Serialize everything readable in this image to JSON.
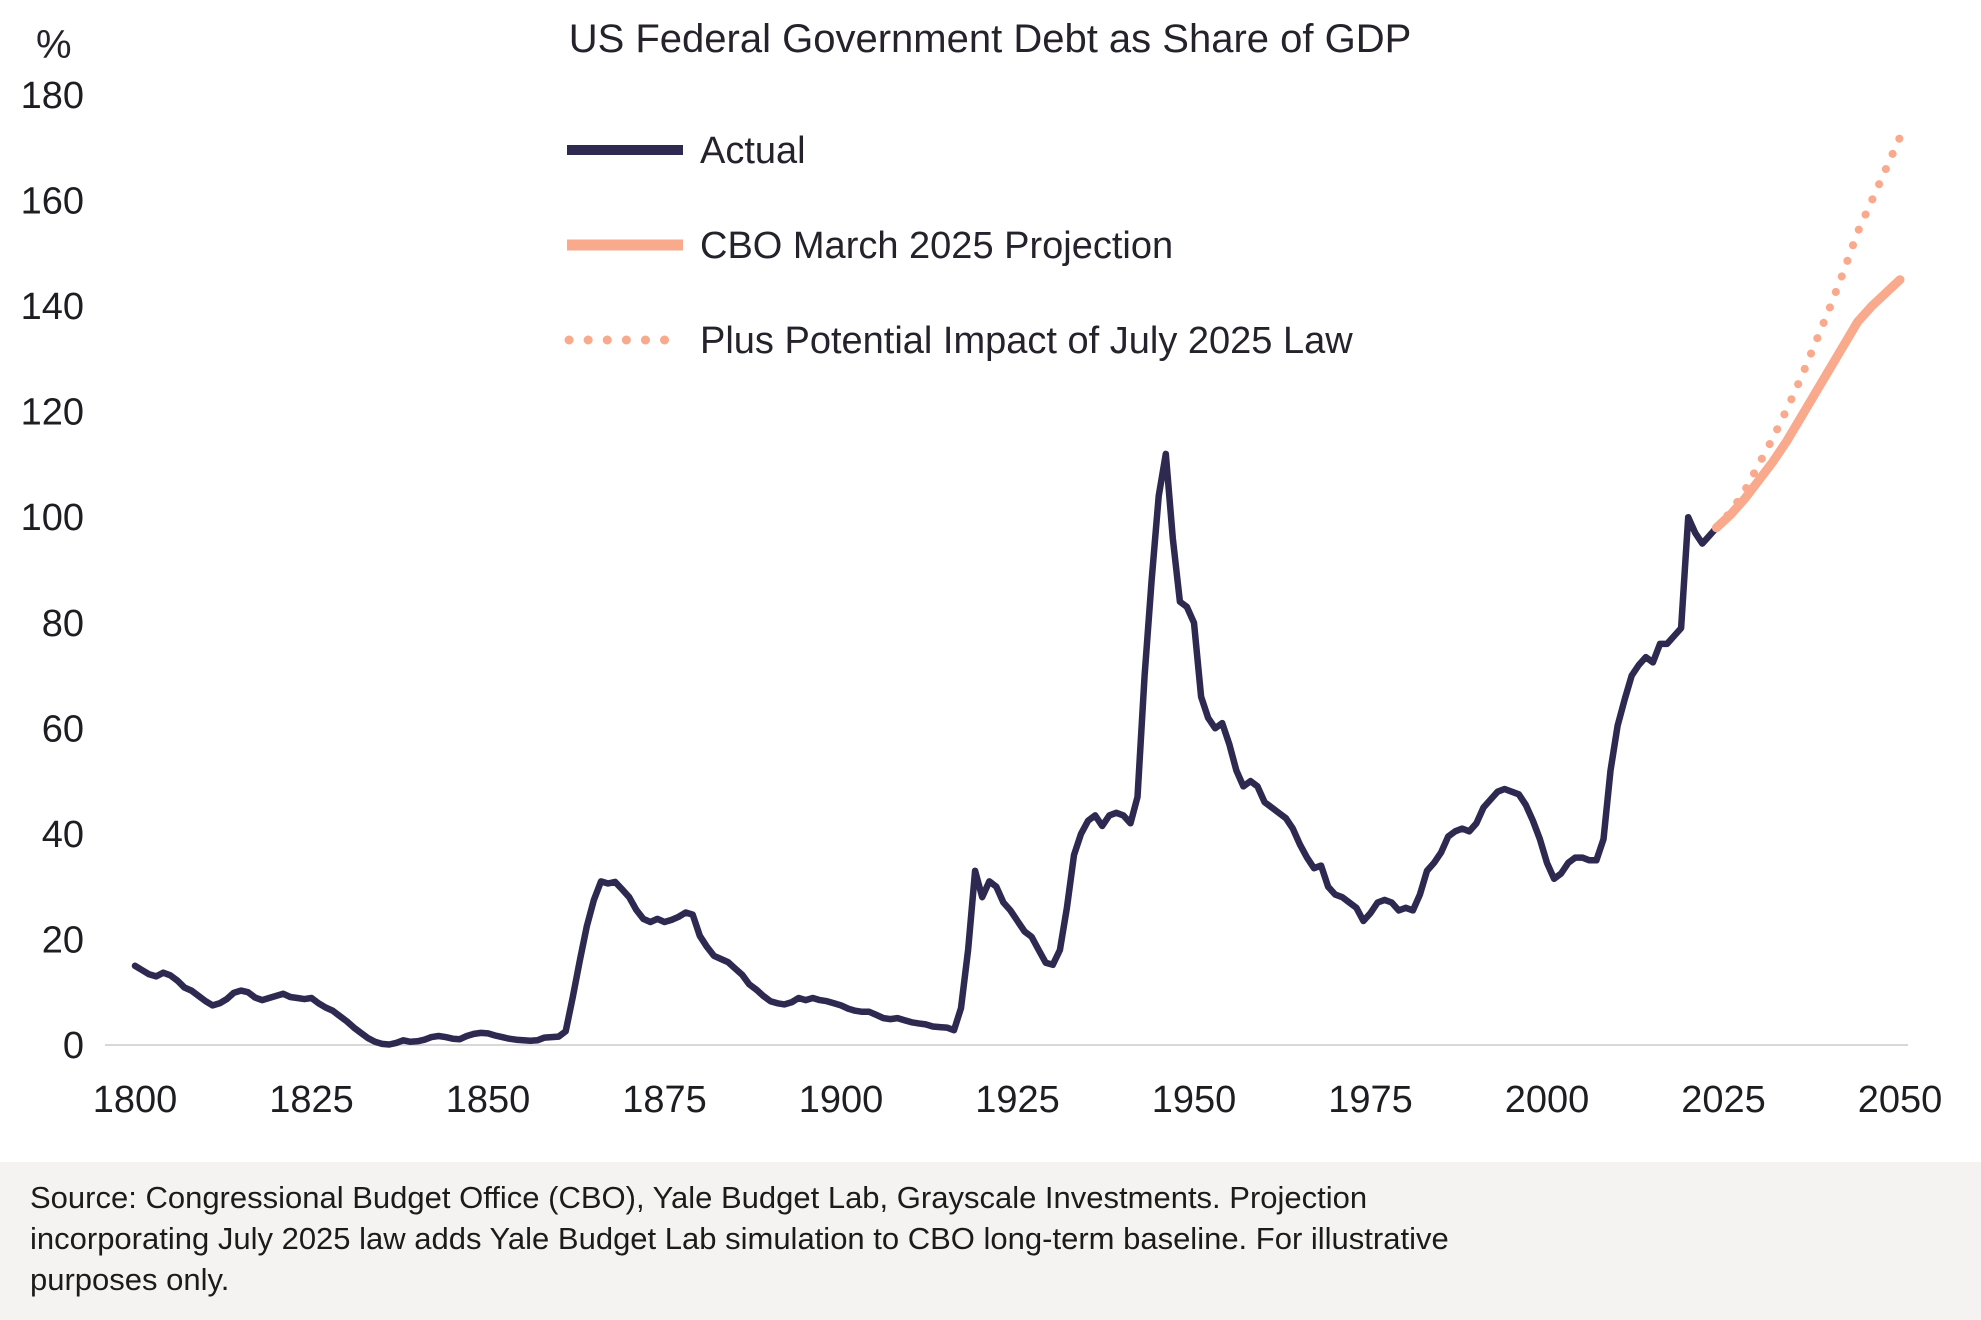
{
  "page": {
    "background": "#ffffff",
    "footer_background": "#f4f3f1"
  },
  "colors": {
    "actual_line": "#2e2950",
    "projection_line": "#f9a98c",
    "axis_line": "#d8d8d8",
    "text": "#25222b"
  },
  "footer": {
    "source_text": "Source: Congressional Budget Office (CBO), Yale Budget Lab, Grayscale Investments. Projection\nincorporating July 2025 law adds Yale Budget Lab simulation to CBO long-term baseline. For illustrative\npurposes only."
  },
  "chart_data": {
    "type": "line",
    "title": "US Federal Government Debt as Share of GDP",
    "ylabel": "%",
    "xlabel": "",
    "xlim": [
      1800,
      2050
    ],
    "ylim": [
      0,
      180
    ],
    "grid": false,
    "legend_position": "top-left-inside",
    "y_ticks": [
      0,
      20,
      40,
      60,
      80,
      100,
      120,
      140,
      160,
      180
    ],
    "x_ticks": [
      1800,
      1825,
      1850,
      1875,
      1900,
      1925,
      1950,
      1975,
      2000,
      2025,
      2050
    ],
    "series": [
      {
        "name": "Actual",
        "color": "#2e2950",
        "style": "solid",
        "points": [
          [
            1800,
            15.0
          ],
          [
            1801,
            14.2
          ],
          [
            1802,
            13.4
          ],
          [
            1803,
            13.0
          ],
          [
            1804,
            13.7
          ],
          [
            1805,
            13.2
          ],
          [
            1806,
            12.2
          ],
          [
            1807,
            10.9
          ],
          [
            1808,
            10.3
          ],
          [
            1809,
            9.3
          ],
          [
            1810,
            8.3
          ],
          [
            1811,
            7.5
          ],
          [
            1812,
            7.9
          ],
          [
            1813,
            8.7
          ],
          [
            1814,
            9.9
          ],
          [
            1815,
            10.3
          ],
          [
            1816,
            10.0
          ],
          [
            1817,
            9.0
          ],
          [
            1818,
            8.5
          ],
          [
            1819,
            8.9
          ],
          [
            1820,
            9.3
          ],
          [
            1821,
            9.7
          ],
          [
            1822,
            9.1
          ],
          [
            1823,
            8.9
          ],
          [
            1824,
            8.7
          ],
          [
            1825,
            8.9
          ],
          [
            1826,
            7.9
          ],
          [
            1827,
            7.1
          ],
          [
            1828,
            6.5
          ],
          [
            1829,
            5.5
          ],
          [
            1830,
            4.5
          ],
          [
            1831,
            3.3
          ],
          [
            1832,
            2.3
          ],
          [
            1833,
            1.3
          ],
          [
            1834,
            0.6
          ],
          [
            1835,
            0.2
          ],
          [
            1836,
            0.1
          ],
          [
            1837,
            0.4
          ],
          [
            1838,
            0.9
          ],
          [
            1839,
            0.6
          ],
          [
            1840,
            0.7
          ],
          [
            1841,
            1.0
          ],
          [
            1842,
            1.5
          ],
          [
            1843,
            1.7
          ],
          [
            1844,
            1.5
          ],
          [
            1845,
            1.2
          ],
          [
            1846,
            1.1
          ],
          [
            1847,
            1.7
          ],
          [
            1848,
            2.1
          ],
          [
            1849,
            2.3
          ],
          [
            1850,
            2.2
          ],
          [
            1851,
            1.8
          ],
          [
            1852,
            1.5
          ],
          [
            1853,
            1.2
          ],
          [
            1854,
            1.0
          ],
          [
            1855,
            0.9
          ],
          [
            1856,
            0.8
          ],
          [
            1857,
            0.9
          ],
          [
            1858,
            1.4
          ],
          [
            1859,
            1.5
          ],
          [
            1860,
            1.6
          ],
          [
            1861,
            2.6
          ],
          [
            1862,
            9.0
          ],
          [
            1863,
            16.0
          ],
          [
            1864,
            22.5
          ],
          [
            1865,
            27.5
          ],
          [
            1866,
            31.0
          ],
          [
            1867,
            30.6
          ],
          [
            1868,
            30.9
          ],
          [
            1869,
            29.5
          ],
          [
            1870,
            28.0
          ],
          [
            1871,
            25.6
          ],
          [
            1872,
            23.9
          ],
          [
            1873,
            23.3
          ],
          [
            1874,
            23.9
          ],
          [
            1875,
            23.3
          ],
          [
            1876,
            23.7
          ],
          [
            1877,
            24.3
          ],
          [
            1878,
            25.1
          ],
          [
            1879,
            24.7
          ],
          [
            1880,
            20.7
          ],
          [
            1881,
            18.6
          ],
          [
            1882,
            16.9
          ],
          [
            1883,
            16.3
          ],
          [
            1884,
            15.7
          ],
          [
            1885,
            14.5
          ],
          [
            1886,
            13.3
          ],
          [
            1887,
            11.5
          ],
          [
            1888,
            10.5
          ],
          [
            1889,
            9.3
          ],
          [
            1890,
            8.3
          ],
          [
            1891,
            7.9
          ],
          [
            1892,
            7.7
          ],
          [
            1893,
            8.1
          ],
          [
            1894,
            8.9
          ],
          [
            1895,
            8.5
          ],
          [
            1896,
            8.9
          ],
          [
            1897,
            8.5
          ],
          [
            1898,
            8.3
          ],
          [
            1899,
            7.9
          ],
          [
            1900,
            7.5
          ],
          [
            1901,
            6.9
          ],
          [
            1902,
            6.5
          ],
          [
            1903,
            6.3
          ],
          [
            1904,
            6.3
          ],
          [
            1905,
            5.7
          ],
          [
            1906,
            5.1
          ],
          [
            1907,
            4.9
          ],
          [
            1908,
            5.1
          ],
          [
            1909,
            4.7
          ],
          [
            1910,
            4.3
          ],
          [
            1911,
            4.1
          ],
          [
            1912,
            3.9
          ],
          [
            1913,
            3.5
          ],
          [
            1914,
            3.4
          ],
          [
            1915,
            3.3
          ],
          [
            1916,
            2.8
          ],
          [
            1917,
            7.0
          ],
          [
            1918,
            18.0
          ],
          [
            1919,
            33.0
          ],
          [
            1920,
            28.0
          ],
          [
            1921,
            31.0
          ],
          [
            1922,
            30.0
          ],
          [
            1923,
            27.0
          ],
          [
            1924,
            25.5
          ],
          [
            1925,
            23.5
          ],
          [
            1926,
            21.5
          ],
          [
            1927,
            20.5
          ],
          [
            1928,
            18.0
          ],
          [
            1929,
            15.6
          ],
          [
            1930,
            15.2
          ],
          [
            1931,
            18.0
          ],
          [
            1932,
            26.0
          ],
          [
            1933,
            36.0
          ],
          [
            1934,
            40.0
          ],
          [
            1935,
            42.5
          ],
          [
            1936,
            43.5
          ],
          [
            1937,
            41.5
          ],
          [
            1938,
            43.5
          ],
          [
            1939,
            44.0
          ],
          [
            1940,
            43.5
          ],
          [
            1941,
            42.0
          ],
          [
            1942,
            47.0
          ],
          [
            1943,
            70.0
          ],
          [
            1944,
            88.0
          ],
          [
            1945,
            104.0
          ],
          [
            1946,
            112.0
          ],
          [
            1947,
            96.0
          ],
          [
            1948,
            84.0
          ],
          [
            1949,
            83.0
          ],
          [
            1950,
            80.0
          ],
          [
            1951,
            66.0
          ],
          [
            1952,
            62.0
          ],
          [
            1953,
            60.0
          ],
          [
            1954,
            61.0
          ],
          [
            1955,
            57.0
          ],
          [
            1956,
            52.0
          ],
          [
            1957,
            49.0
          ],
          [
            1958,
            50.0
          ],
          [
            1959,
            49.0
          ],
          [
            1960,
            46.0
          ],
          [
            1961,
            45.0
          ],
          [
            1962,
            44.0
          ],
          [
            1963,
            43.0
          ],
          [
            1964,
            41.0
          ],
          [
            1965,
            38.0
          ],
          [
            1966,
            35.5
          ],
          [
            1967,
            33.5
          ],
          [
            1968,
            34.0
          ],
          [
            1969,
            30.0
          ],
          [
            1970,
            28.5
          ],
          [
            1971,
            28.0
          ],
          [
            1972,
            27.0
          ],
          [
            1973,
            26.0
          ],
          [
            1974,
            23.5
          ],
          [
            1975,
            25.0
          ],
          [
            1976,
            27.0
          ],
          [
            1977,
            27.5
          ],
          [
            1978,
            27.0
          ],
          [
            1979,
            25.5
          ],
          [
            1980,
            26.0
          ],
          [
            1981,
            25.5
          ],
          [
            1982,
            28.5
          ],
          [
            1983,
            33.0
          ],
          [
            1984,
            34.5
          ],
          [
            1985,
            36.5
          ],
          [
            1986,
            39.5
          ],
          [
            1987,
            40.5
          ],
          [
            1988,
            41.0
          ],
          [
            1989,
            40.5
          ],
          [
            1990,
            42.0
          ],
          [
            1991,
            45.0
          ],
          [
            1992,
            46.5
          ],
          [
            1993,
            48.0
          ],
          [
            1994,
            48.5
          ],
          [
            1995,
            48.0
          ],
          [
            1996,
            47.5
          ],
          [
            1997,
            45.5
          ],
          [
            1998,
            42.5
          ],
          [
            1999,
            39.0
          ],
          [
            2000,
            34.5
          ],
          [
            2001,
            31.5
          ],
          [
            2002,
            32.5
          ],
          [
            2003,
            34.5
          ],
          [
            2004,
            35.5
          ],
          [
            2005,
            35.5
          ],
          [
            2006,
            35.0
          ],
          [
            2007,
            35.0
          ],
          [
            2008,
            39.0
          ],
          [
            2009,
            52.0
          ],
          [
            2010,
            60.5
          ],
          [
            2011,
            65.5
          ],
          [
            2012,
            70.0
          ],
          [
            2013,
            72.0
          ],
          [
            2014,
            73.5
          ],
          [
            2015,
            72.5
          ],
          [
            2016,
            76.0
          ],
          [
            2017,
            76.0
          ],
          [
            2018,
            77.5
          ],
          [
            2019,
            79.0
          ],
          [
            2020,
            100.0
          ],
          [
            2021,
            97.0
          ],
          [
            2022,
            95.0
          ],
          [
            2023,
            96.5
          ],
          [
            2024,
            98.0
          ]
        ]
      },
      {
        "name": "CBO March 2025 Projection",
        "color": "#f9a98c",
        "style": "solid",
        "points": [
          [
            2024,
            98
          ],
          [
            2026,
            100.5
          ],
          [
            2028,
            103.5
          ],
          [
            2030,
            107
          ],
          [
            2032,
            110.5
          ],
          [
            2034,
            114.5
          ],
          [
            2036,
            119
          ],
          [
            2038,
            123.5
          ],
          [
            2040,
            128
          ],
          [
            2042,
            132.5
          ],
          [
            2044,
            137
          ],
          [
            2046,
            140
          ],
          [
            2048,
            142.5
          ],
          [
            2050,
            145
          ]
        ]
      },
      {
        "name": "Plus Potential Impact of July 2025 Law",
        "color": "#f9a98c",
        "style": "dotted",
        "points": [
          [
            2024,
            98
          ],
          [
            2026,
            101
          ],
          [
            2028,
            105
          ],
          [
            2030,
            110
          ],
          [
            2032,
            115
          ],
          [
            2034,
            120.5
          ],
          [
            2036,
            126.5
          ],
          [
            2038,
            133
          ],
          [
            2040,
            139.5
          ],
          [
            2042,
            146.5
          ],
          [
            2044,
            154
          ],
          [
            2046,
            160
          ],
          [
            2048,
            166
          ],
          [
            2050,
            172
          ]
        ]
      }
    ]
  }
}
